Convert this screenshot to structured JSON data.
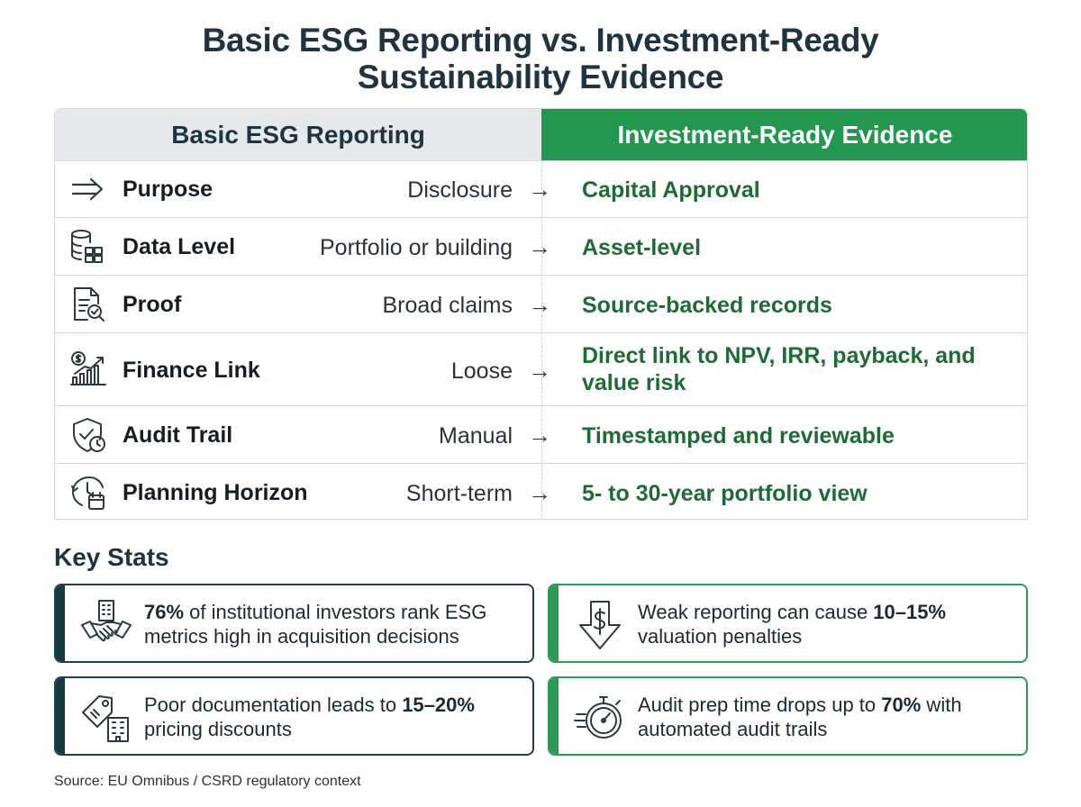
{
  "title_line1": "Basic ESG Reporting vs. Investment-Ready",
  "title_line2": "Sustainability Evidence",
  "header": {
    "left": "Basic ESG Reporting",
    "right": "Investment-Ready Evidence"
  },
  "arrow_glyph": "→",
  "rows": [
    {
      "icon": "arrow-right-icon",
      "label": "Purpose",
      "basic": "Disclosure",
      "ready": "Capital Approval"
    },
    {
      "icon": "database-blocks-icon",
      "label": "Data Level",
      "basic": "Portfolio or building",
      "ready": "Asset-level"
    },
    {
      "icon": "document-check-icon",
      "label": "Proof",
      "basic": "Broad claims",
      "ready": "Source-backed records"
    },
    {
      "icon": "finance-growth-icon",
      "label": "Finance Link",
      "basic": "Loose",
      "ready": "Direct link to NPV, IRR, payback, and value risk"
    },
    {
      "icon": "shield-clock-icon",
      "label": "Audit Trail",
      "basic": "Manual",
      "ready": "Timestamped and reviewable"
    },
    {
      "icon": "clock-calendar-icon",
      "label": "Planning Horizon",
      "basic": "Short-term",
      "ready": "5- to 30-year portfolio view"
    }
  ],
  "stats_title": "Key Stats",
  "stats": [
    {
      "icon": "handshake-building-icon",
      "before": "",
      "bold": "76%",
      "after": " of institutional investors rank ESG metrics high in acquisition decisions",
      "accent": "dark"
    },
    {
      "icon": "dollar-down-arrow-icon",
      "before": "Weak reporting can cause ",
      "bold": "10–15%",
      "after": " valuation penalties",
      "accent": "green"
    },
    {
      "icon": "price-tag-building-icon",
      "before": "Poor documentation leads to ",
      "bold": "15–20%",
      "after": " pricing discounts",
      "accent": "dark"
    },
    {
      "icon": "stopwatch-speed-icon",
      "before": "Audit prep time drops up to ",
      "bold": "70%",
      "after": " with automated audit trails",
      "accent": "green"
    }
  ],
  "source": "Source: EU Omnibus / CSRD regulatory context",
  "colors": {
    "accent_green": "#23964f",
    "accent_dark": "#143a44",
    "ready_text": "#1f6b36"
  }
}
